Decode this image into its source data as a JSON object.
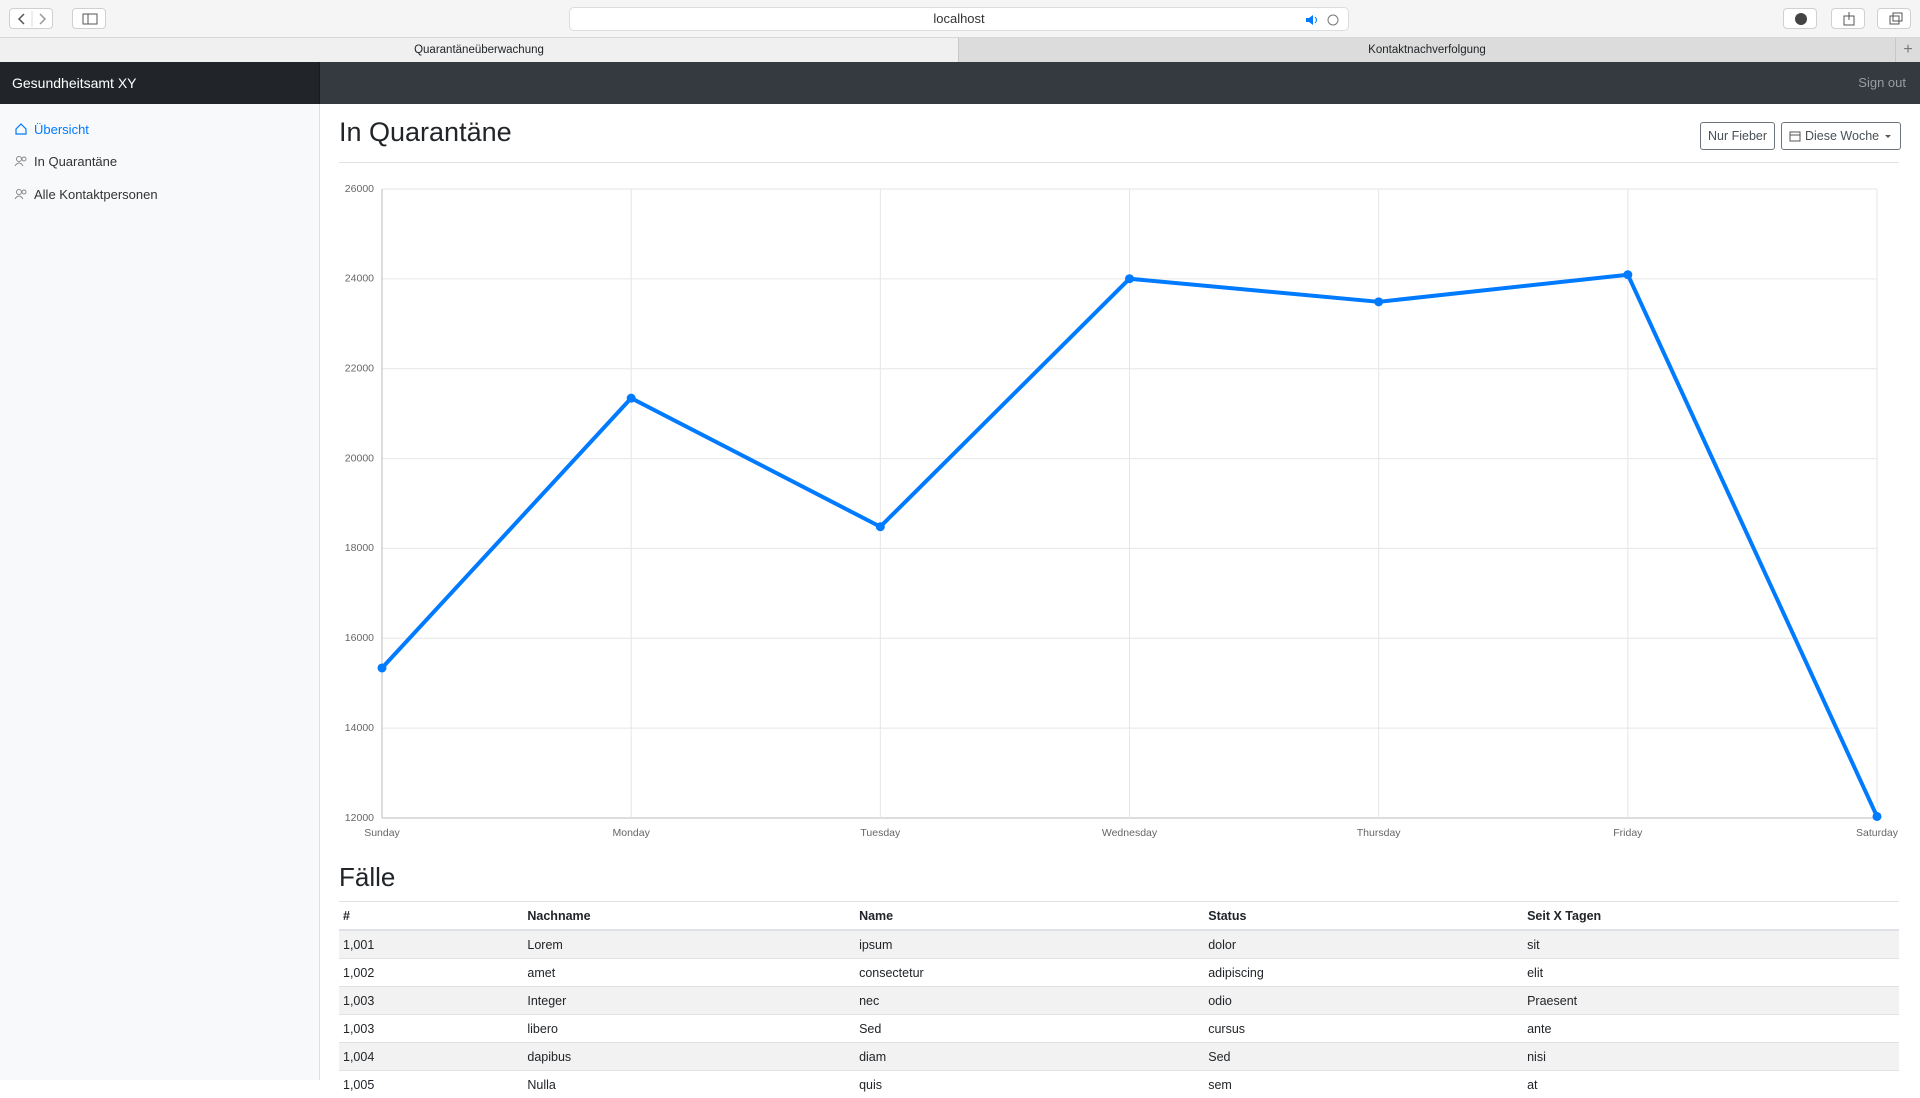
{
  "browser": {
    "address": "localhost",
    "tabs": [
      "Quarantäneüberwachung",
      "Kontaktnachverfolgung"
    ]
  },
  "navbar": {
    "brand": "Gesundheitsamt XY",
    "sign_out": "Sign out"
  },
  "sidebar": {
    "items": [
      "Übersicht",
      "In Quarantäne",
      "Alle Kontaktpersonen"
    ]
  },
  "header": {
    "title": "In Quarantäne",
    "buttons": [
      "Nur Fieber",
      "Diese Woche"
    ]
  },
  "chart_data": {
    "type": "line",
    "categories": [
      "Sunday",
      "Monday",
      "Tuesday",
      "Wednesday",
      "Thursday",
      "Friday",
      "Saturday"
    ],
    "values": [
      15339,
      21345,
      18483,
      24003,
      23489,
      24092,
      12034
    ],
    "color": "#007bff",
    "ylim": [
      12000,
      26000
    ],
    "yticks": [
      12000,
      14000,
      16000,
      18000,
      20000,
      22000,
      24000,
      26000
    ],
    "grid": true
  },
  "table": {
    "title": "Fälle",
    "columns": [
      "#",
      "Nachname",
      "Name",
      "Status",
      "Seit X Tagen"
    ],
    "rows": [
      [
        "1,001",
        "Lorem",
        "ipsum",
        "dolor",
        "sit"
      ],
      [
        "1,002",
        "amet",
        "consectetur",
        "adipiscing",
        "elit"
      ],
      [
        "1,003",
        "Integer",
        "nec",
        "odio",
        "Praesent"
      ],
      [
        "1,003",
        "libero",
        "Sed",
        "cursus",
        "ante"
      ],
      [
        "1,004",
        "dapibus",
        "diam",
        "Sed",
        "nisi"
      ],
      [
        "1,005",
        "Nulla",
        "quis",
        "sem",
        "at"
      ]
    ]
  }
}
